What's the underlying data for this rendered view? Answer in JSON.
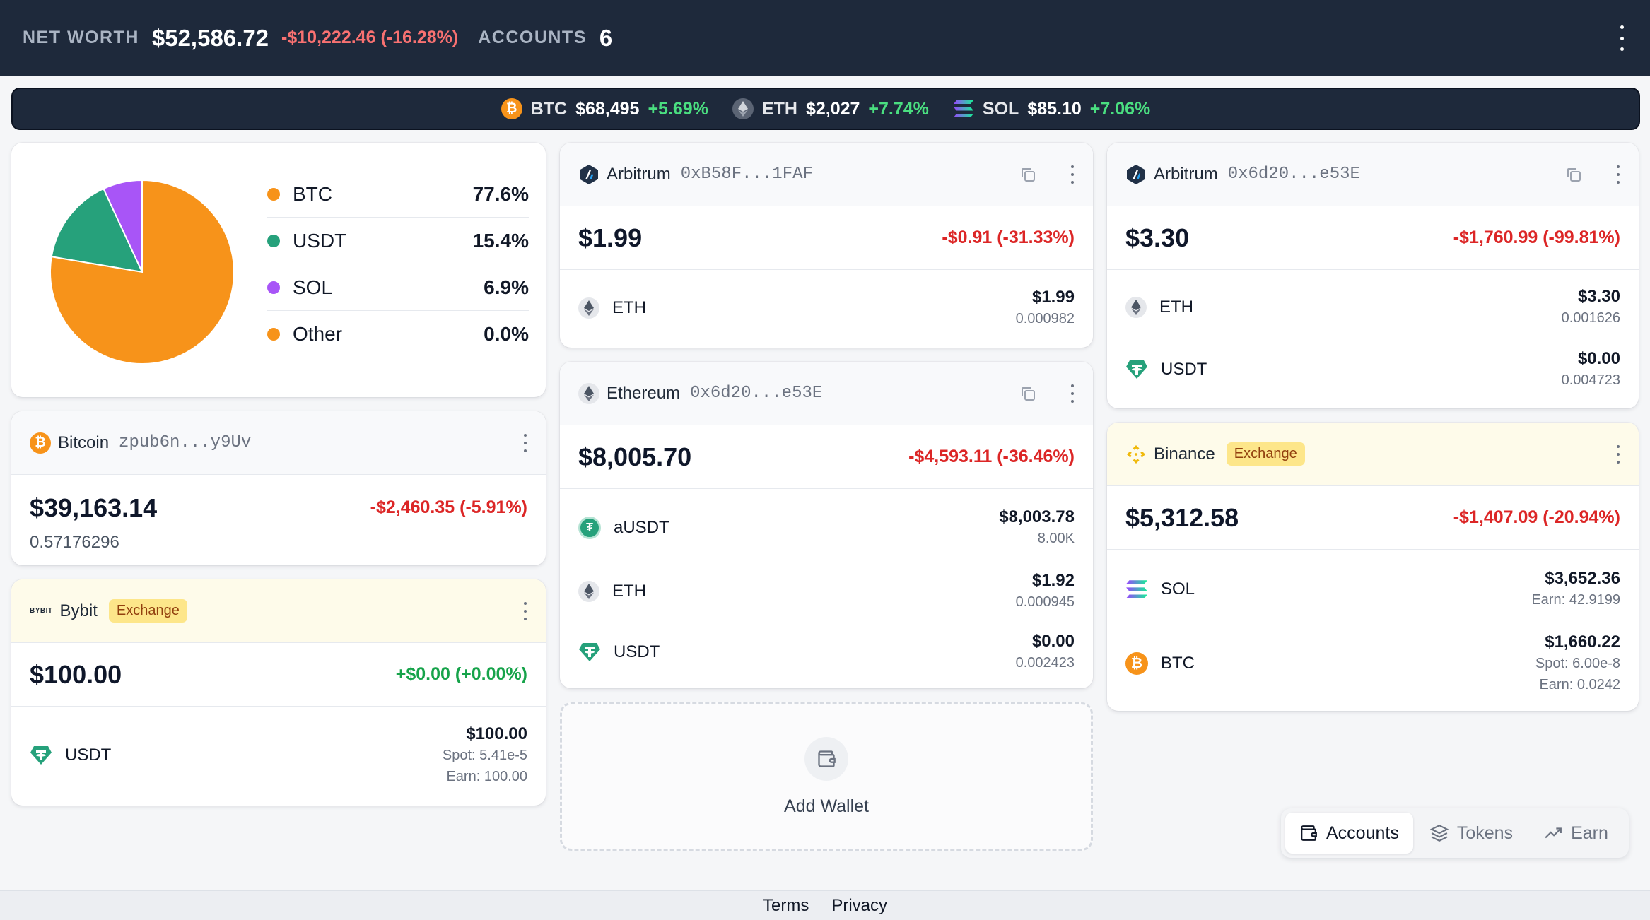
{
  "header": {
    "net_worth_label": "NET WORTH",
    "net_worth_value": "$52,586.72",
    "net_worth_change": "-$10,222.46 (-16.28%)",
    "accounts_label": "ACCOUNTS",
    "accounts_count": "6",
    "menu_icon": "vertical-dots-icon"
  },
  "ticker": [
    {
      "symbol": "BTC",
      "price": "$68,495",
      "change": "+5.69%",
      "icon": "bitcoin-icon"
    },
    {
      "symbol": "ETH",
      "price": "$2,027",
      "change": "+7.74%",
      "icon": "ethereum-icon"
    },
    {
      "symbol": "SOL",
      "price": "$85.10",
      "change": "+7.06%",
      "icon": "solana-icon"
    }
  ],
  "allocation": {
    "chart_data": {
      "type": "pie",
      "categories": [
        "BTC",
        "USDT",
        "SOL",
        "Other"
      ],
      "values": [
        77.6,
        15.4,
        6.9,
        0.0
      ],
      "colors": [
        "#f7931a",
        "#26a17b",
        "#a855f7",
        "#f7931a"
      ]
    },
    "legend": [
      {
        "name": "BTC",
        "pct": "77.6%",
        "color": "#f7931a"
      },
      {
        "name": "USDT",
        "pct": "15.4%",
        "color": "#26a17b"
      },
      {
        "name": "SOL",
        "pct": "6.9%",
        "color": "#a855f7"
      },
      {
        "name": "Other",
        "pct": "0.0%",
        "color": "#f7931a"
      }
    ]
  },
  "wallets": {
    "bitcoin": {
      "name": "Bitcoin",
      "address": "zpub6n...y9Uv",
      "balance": "$39,163.14",
      "change": "-$2,460.35 (-5.91%)",
      "sub": "0.57176296"
    },
    "bybit": {
      "name": "Bybit",
      "badge": "Exchange",
      "balance": "$100.00",
      "change": "+$0.00 (+0.00%)",
      "assets": [
        {
          "name": "USDT",
          "value": "$100.00",
          "sub1": "Spot: 5.41e-5",
          "sub2": "Earn: 100.00"
        }
      ]
    },
    "arbitrum_1": {
      "name": "Arbitrum",
      "address": "0xB58F...1FAF",
      "balance": "$1.99",
      "change": "-$0.91 (-31.33%)",
      "assets": [
        {
          "name": "ETH",
          "value": "$1.99",
          "sub": "0.000982"
        }
      ]
    },
    "ethereum": {
      "name": "Ethereum",
      "address": "0x6d20...e53E",
      "balance": "$8,005.70",
      "change": "-$4,593.11 (-36.46%)",
      "assets": [
        {
          "name": "aUSDT",
          "value": "$8,003.78",
          "sub": "8.00K"
        },
        {
          "name": "ETH",
          "value": "$1.92",
          "sub": "0.000945"
        },
        {
          "name": "USDT",
          "value": "$0.00",
          "sub": "0.002423"
        }
      ]
    },
    "arbitrum_2": {
      "name": "Arbitrum",
      "address": "0x6d20...e53E",
      "balance": "$3.30",
      "change": "-$1,760.99 (-99.81%)",
      "assets": [
        {
          "name": "ETH",
          "value": "$3.30",
          "sub": "0.001626"
        },
        {
          "name": "USDT",
          "value": "$0.00",
          "sub": "0.004723"
        }
      ]
    },
    "binance": {
      "name": "Binance",
      "badge": "Exchange",
      "balance": "$5,312.58",
      "change": "-$1,407.09 (-20.94%)",
      "assets": [
        {
          "name": "SOL",
          "value": "$3,652.36",
          "sub1": "Earn: 42.9199"
        },
        {
          "name": "BTC",
          "value": "$1,660.22",
          "sub1": "Spot: 6.00e-8",
          "sub2": "Earn: 0.0242"
        }
      ]
    }
  },
  "add_wallet_label": "Add Wallet",
  "bybit_logo_text": "BYBIT",
  "tabs": [
    {
      "label": "Accounts",
      "icon": "wallet-icon",
      "active": true
    },
    {
      "label": "Tokens",
      "icon": "layers-icon",
      "active": false
    },
    {
      "label": "Earn",
      "icon": "trending-up-icon",
      "active": false
    }
  ],
  "footer": {
    "terms": "Terms",
    "privacy": "Privacy"
  }
}
